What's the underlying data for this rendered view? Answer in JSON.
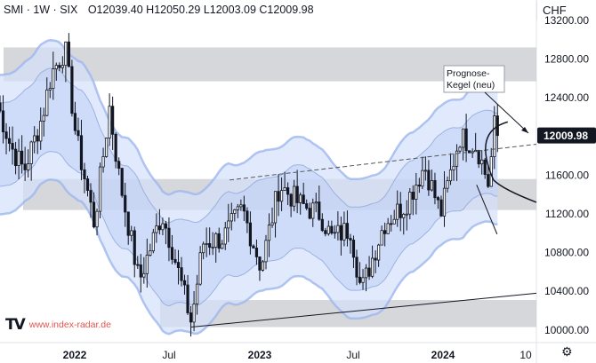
{
  "header": {
    "symbol": "SMI · 1W · SIX",
    "open": "O12039.40",
    "high": "H12050.29",
    "low": "L12003.09",
    "close": "C12009.98"
  },
  "currency_label": "CHF",
  "last_price_label": "12009.98",
  "watermark": {
    "logo_text": "TV",
    "url": "www.index-radar.de"
  },
  "settings_icon": "gear-icon",
  "annotation": {
    "line1": "Prognose-",
    "line2": "Kegel (neu)"
  },
  "colors": {
    "up": "#131722",
    "down": "#131722",
    "band_fill": "#d4e0fb",
    "band_line": "#9db6ee",
    "zone_fill": "#c8cacf",
    "price_label_bg": "#131722"
  },
  "chart_data": {
    "type": "candlestick",
    "y_axis": {
      "ticks": [
        10000,
        10400,
        10800,
        11200,
        11600,
        12000,
        12400,
        12800,
        13200
      ],
      "ylim": [
        9870,
        13410
      ]
    },
    "x_axis": {
      "labels": [
        "2022",
        "Jul",
        "2023",
        "Jul",
        "2024",
        "10"
      ],
      "xlim": [
        "2021-08-08",
        "2024-11-20"
      ]
    },
    "series": [
      {
        "name": "SMI weekly",
        "anchors": [
          [
            "2021-08-01",
            12350
          ],
          [
            "2021-09-01",
            11900
          ],
          [
            "2021-10-01",
            11650
          ],
          [
            "2021-11-10",
            12200
          ],
          [
            "2021-12-01",
            12650
          ],
          [
            "2022-01-01",
            12900
          ],
          [
            "2022-01-25",
            12000
          ],
          [
            "2022-03-07",
            11100
          ],
          [
            "2022-04-10",
            12300
          ],
          [
            "2022-05-01",
            11600
          ],
          [
            "2022-06-15",
            10500
          ],
          [
            "2022-08-05",
            11200
          ],
          [
            "2022-08-25",
            10900
          ],
          [
            "2022-10-10",
            10080
          ],
          [
            "2022-11-05",
            10900
          ],
          [
            "2022-12-20",
            10950
          ],
          [
            "2023-02-01",
            11250
          ],
          [
            "2023-03-15",
            10650
          ],
          [
            "2023-04-25",
            11500
          ],
          [
            "2023-06-10",
            11300
          ],
          [
            "2023-07-25",
            11200
          ],
          [
            "2023-08-20",
            10950
          ],
          [
            "2023-10-01",
            11050
          ],
          [
            "2023-10-25",
            10400
          ],
          [
            "2023-12-15",
            11100
          ],
          [
            "2024-02-01",
            11300
          ],
          [
            "2024-03-15",
            11700
          ],
          [
            "2024-04-20",
            11200
          ],
          [
            "2024-06-01",
            12000
          ],
          [
            "2024-07-10",
            11900
          ],
          [
            "2024-08-05",
            11500
          ],
          [
            "2024-08-20",
            12200
          ],
          [
            "2024-08-28",
            12010
          ]
        ]
      }
    ],
    "zones": [
      {
        "from": 12570,
        "to": 12920
      },
      {
        "from": 11240,
        "to": 11560
      },
      {
        "from": 10030,
        "to": 10310
      }
    ],
    "support_trendline": [
      [
        "2022-10-10",
        10030
      ],
      [
        "2024-11-20",
        10380
      ]
    ],
    "resistance_trendline": [
      [
        "2022-10-10",
        11550
      ],
      [
        "2024-11-20",
        11920
      ]
    ],
    "last_close": 12009.98
  }
}
